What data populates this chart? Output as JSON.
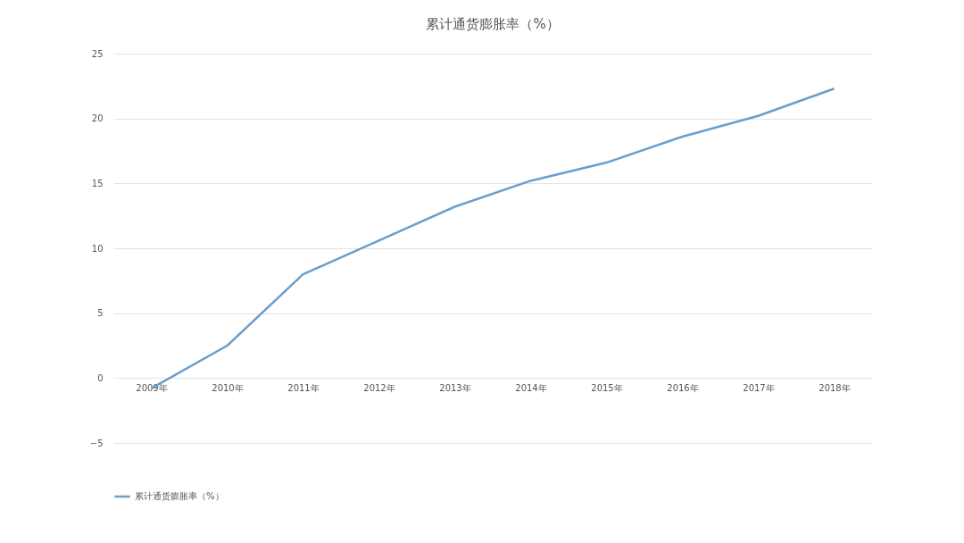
{
  "chart_data": {
    "type": "line",
    "title": "累计通货膨胀率（%）",
    "categories": [
      "2009年",
      "2010年",
      "2011年",
      "2012年",
      "2013年",
      "2014年",
      "2015年",
      "2016年",
      "2017年",
      "2018年"
    ],
    "series": [
      {
        "name": "累计通货膨胀率（%）",
        "color": "#6a9fcb",
        "values": [
          -0.8,
          2.5,
          8.0,
          10.6,
          13.2,
          15.2,
          16.6,
          18.6,
          20.2,
          22.3
        ]
      }
    ],
    "ylim": [
      -5,
      25
    ],
    "yticks": [
      -5,
      0,
      5,
      10,
      15,
      20,
      25
    ],
    "grid": "y",
    "legend": "bottom"
  }
}
